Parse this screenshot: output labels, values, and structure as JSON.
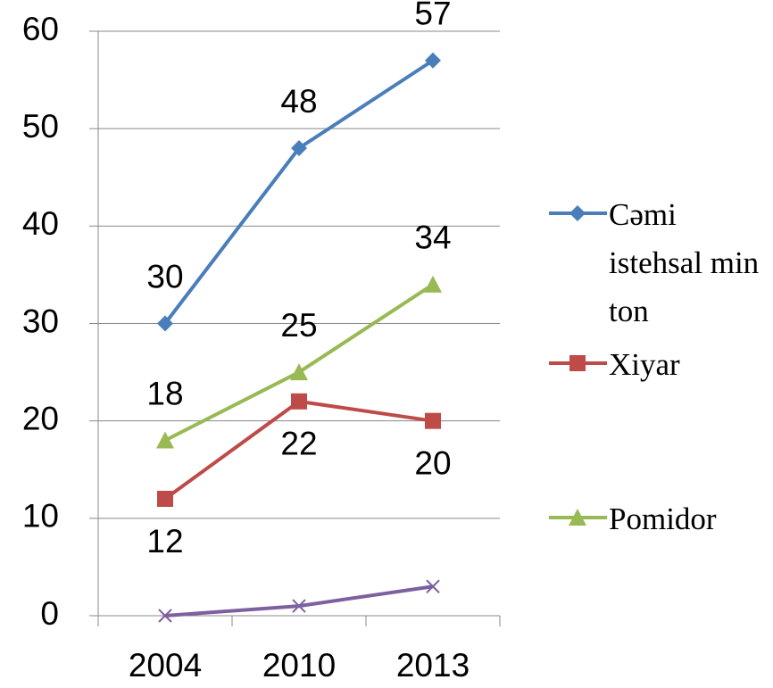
{
  "chart_data": {
    "type": "line",
    "categories": [
      "2004",
      "2010",
      "2013"
    ],
    "series": [
      {
        "name": "Cəmi istehsal min ton",
        "color": "#4a7ebb",
        "marker": "diamond",
        "label_position": "above",
        "values": [
          30,
          48,
          57
        ]
      },
      {
        "name": "Xiyar",
        "color": "#be4b48",
        "marker": "square",
        "label_position": "below",
        "values": [
          12,
          22,
          20
        ]
      },
      {
        "name": "Pomidor",
        "color": "#98b954",
        "marker": "triangle",
        "label_position": "above",
        "values": [
          18,
          25,
          34
        ]
      },
      {
        "color": "#7d60a0",
        "marker": "x",
        "values": [
          0,
          1,
          3
        ]
      }
    ],
    "ylim": [
      0,
      60
    ],
    "yticks": [
      0,
      10,
      20,
      30,
      40,
      50,
      60
    ],
    "grid": true,
    "legend": "right"
  }
}
